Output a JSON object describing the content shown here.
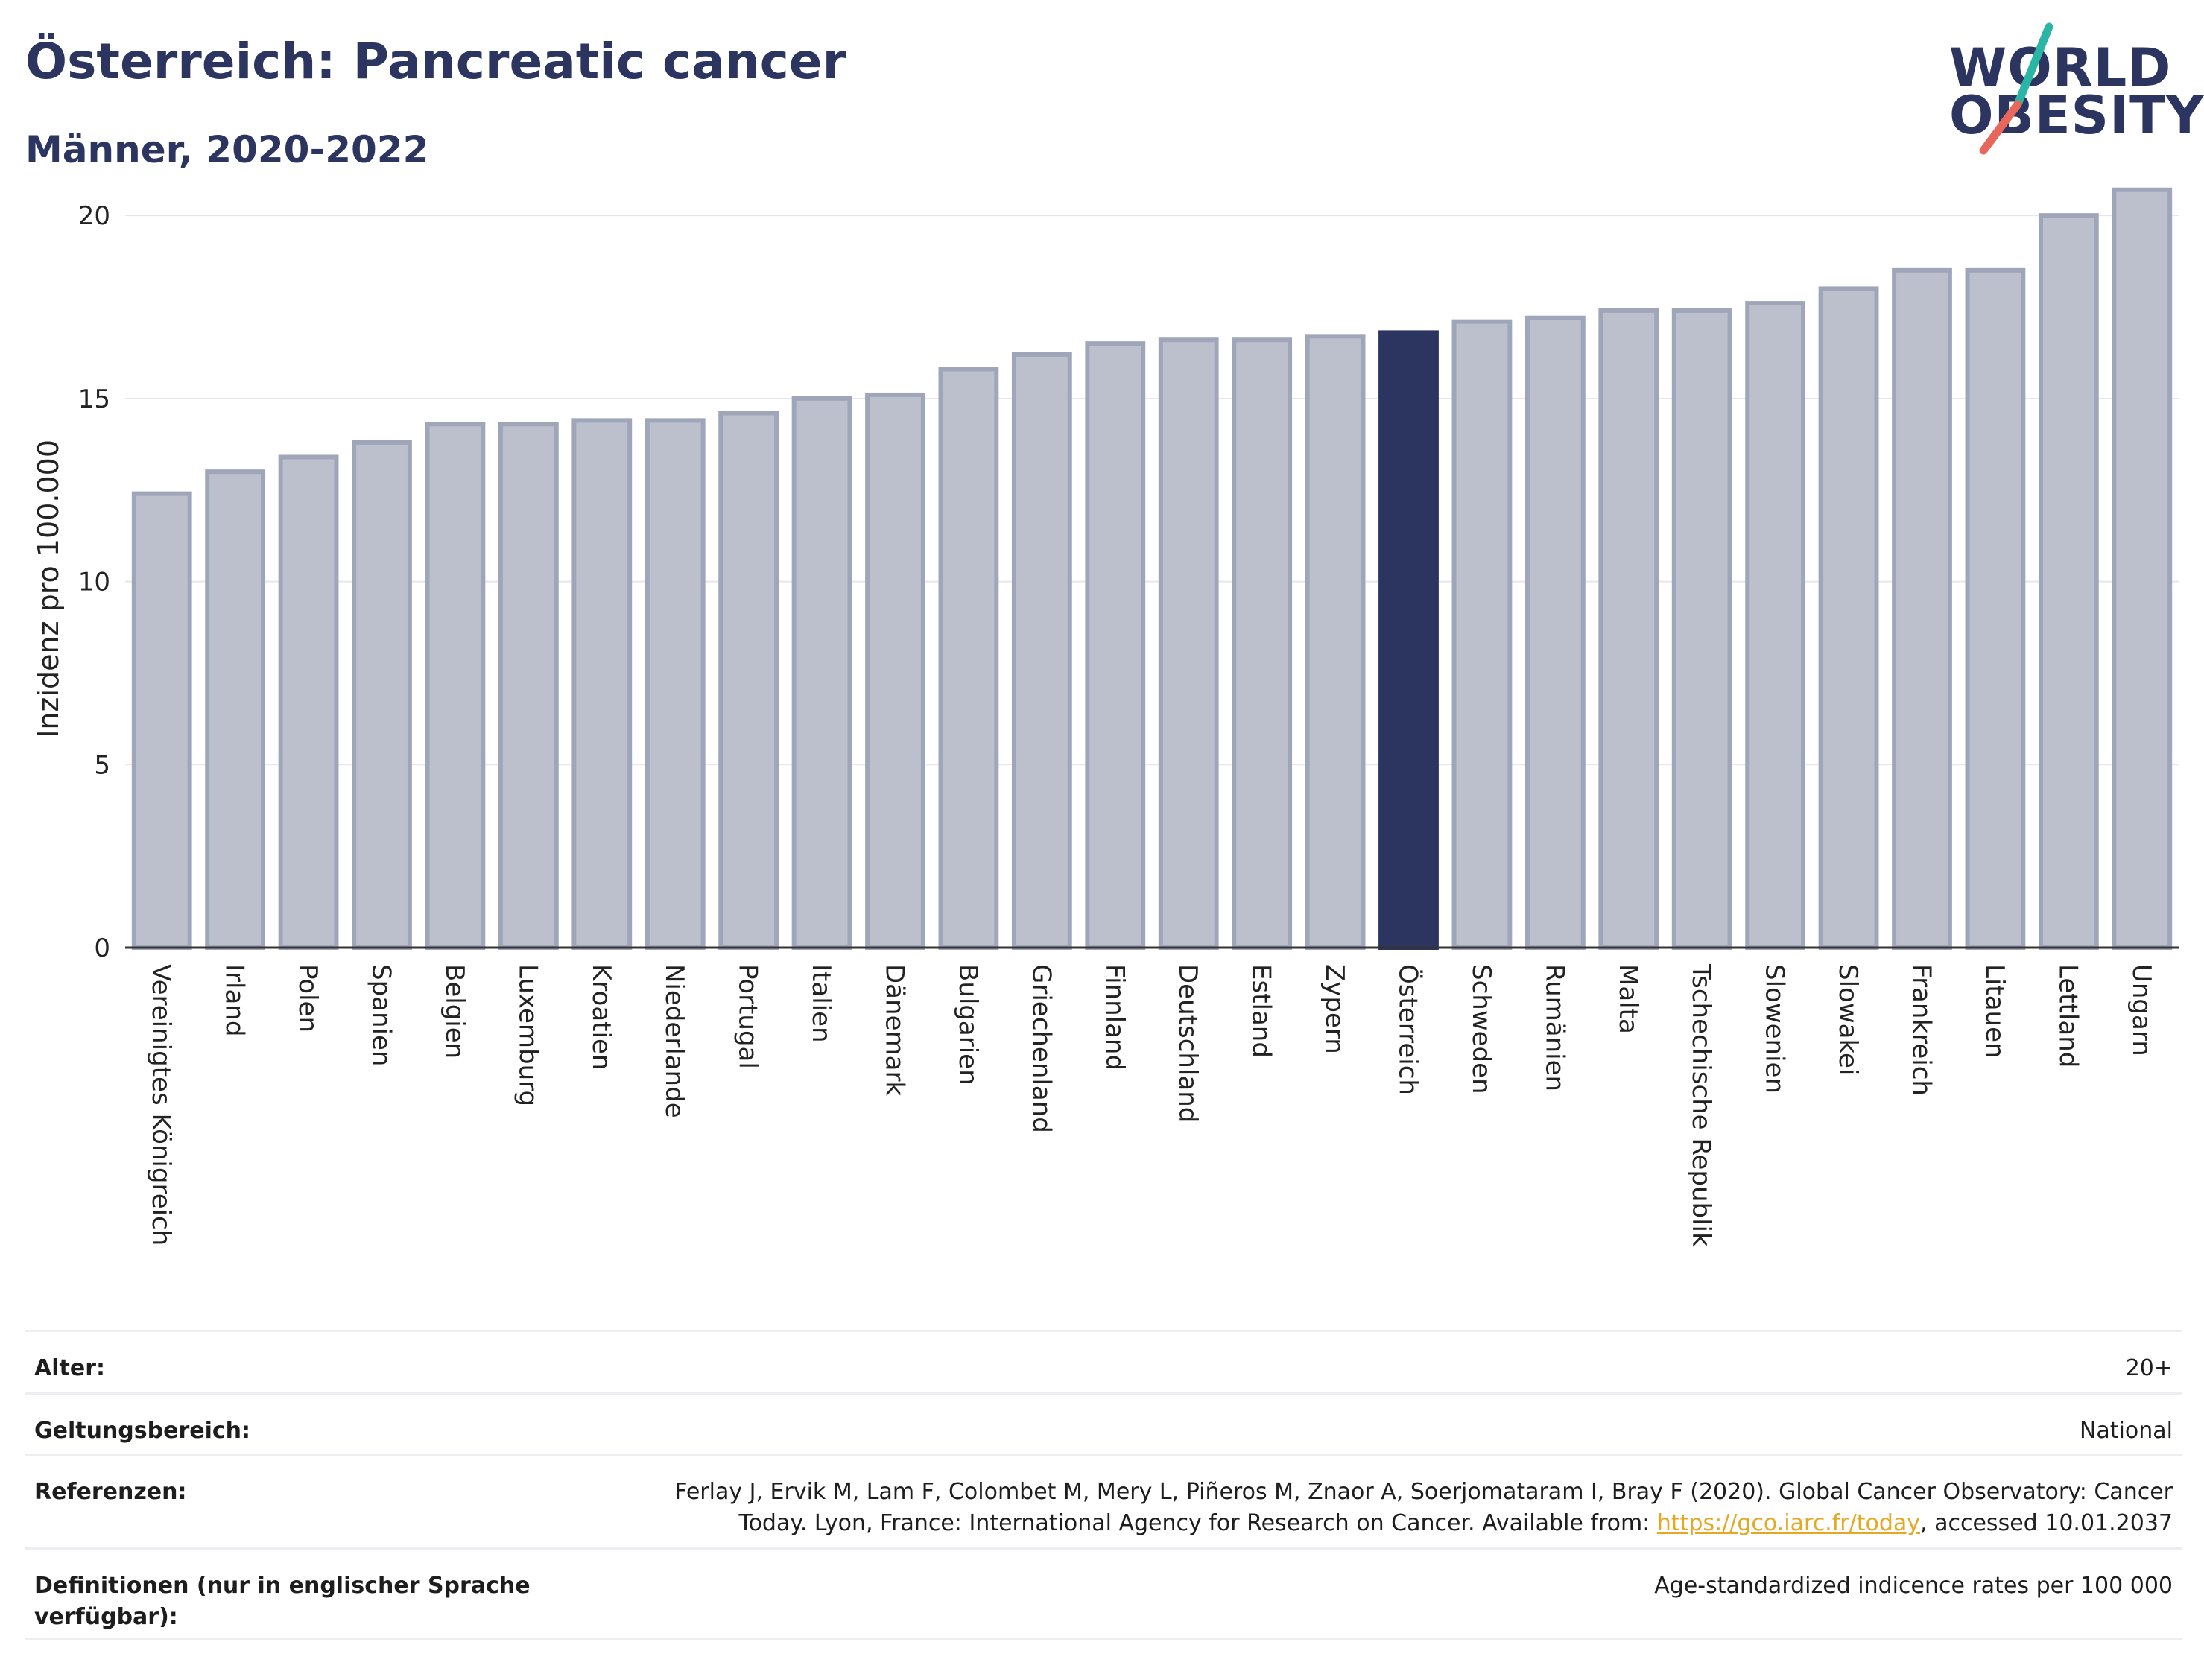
{
  "header": {
    "title": "Österreich: Pancreatic cancer",
    "subtitle": "Männer, 2020-2022"
  },
  "logo": {
    "line1": "WORLD",
    "line2": "OBESITY",
    "slash_colors": [
      "#2ab5a5",
      "#e8675a"
    ]
  },
  "colors": {
    "bar": "#bcc0cd",
    "bar_border": "#a0a6b9",
    "highlight": "#2b3560",
    "grid": "#e6e8ee",
    "axis": "#333333"
  },
  "chart_data": {
    "type": "bar",
    "ylabel": "Inzidenz pro 100.000",
    "ylim": [
      0,
      21
    ],
    "yticks": [
      0,
      5,
      10,
      15,
      20
    ],
    "grid": true,
    "highlight": "Österreich",
    "categories": [
      "Vereinigtes Königreich",
      "Irland",
      "Polen",
      "Spanien",
      "Belgien",
      "Luxemburg",
      "Kroatien",
      "Niederlande",
      "Portugal",
      "Italien",
      "Dänemark",
      "Bulgarien",
      "Griechenland",
      "Finnland",
      "Deutschland",
      "Estland",
      "Zypern",
      "Österreich",
      "Schweden",
      "Rumänien",
      "Malta",
      "Tschechische Republik",
      "Slowenien",
      "Slowakei",
      "Frankreich",
      "Litauen",
      "Lettland",
      "Ungarn"
    ],
    "values": [
      12.4,
      13.0,
      13.4,
      13.8,
      14.3,
      14.3,
      14.4,
      14.4,
      14.6,
      15.0,
      15.1,
      15.8,
      16.2,
      16.5,
      16.6,
      16.6,
      16.7,
      16.8,
      17.1,
      17.2,
      17.4,
      17.4,
      17.6,
      18.0,
      18.5,
      18.5,
      20.0,
      20.7
    ]
  },
  "meta": {
    "age_label": "Alter:",
    "age_value": "20+",
    "scope_label": "Geltungsbereich:",
    "scope_value": "National",
    "refs_label": "Referenzen:",
    "refs_text_1": "Ferlay J, Ervik M, Lam F, Colombet M, Mery L, Piñeros M, Znaor A, Soerjomataram I, Bray F (2020). Global Cancer Observatory: Cancer",
    "refs_text_2": "Today. Lyon, France: International Agency for Research on Cancer. Available from: ",
    "refs_link": "https://gco.iarc.fr/today",
    "refs_text_3": ", accessed 10.01.2037",
    "defs_label": "Definitionen (nur in englischer Sprache verfügbar):",
    "defs_value": "Age-standardized indicence rates per 100 000"
  }
}
